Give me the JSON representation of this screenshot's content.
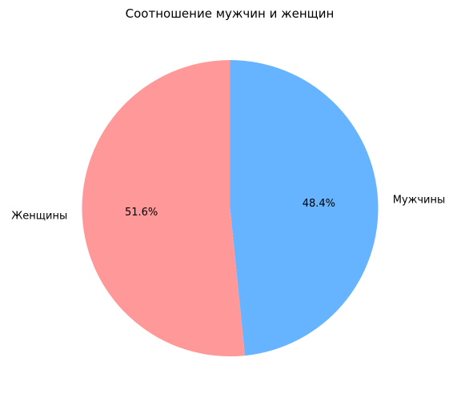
{
  "chart_data": {
    "type": "pie",
    "title": "Соотношение мужчин и женщин",
    "labels": [
      "Мужчины",
      "Женщины"
    ],
    "values": [
      48.4,
      51.6
    ],
    "percent_labels": [
      "48.4%",
      "51.6%"
    ],
    "colors": [
      "#66b3ff",
      "#ff9999"
    ],
    "start_angle_deg": 90,
    "direction": "clockwise",
    "legend": "none"
  }
}
